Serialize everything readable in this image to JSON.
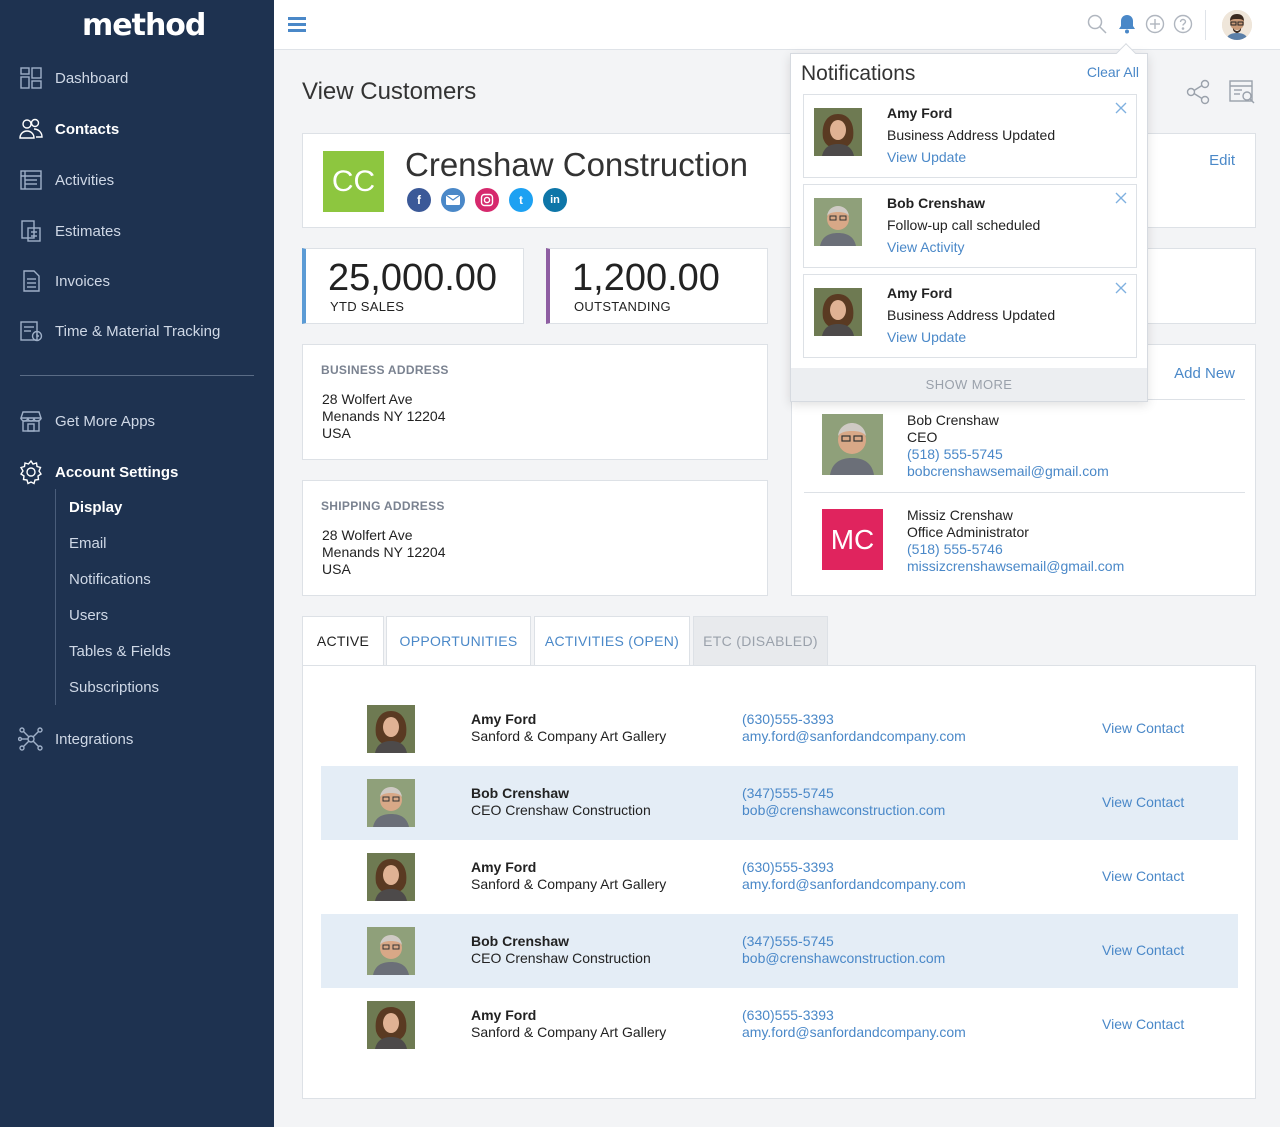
{
  "app": {
    "logo": "method"
  },
  "sidebar": {
    "items": [
      {
        "label": "Dashboard",
        "icon": "dashboard-icon"
      },
      {
        "label": "Contacts",
        "icon": "contacts-icon"
      },
      {
        "label": "Activities",
        "icon": "activities-icon"
      },
      {
        "label": "Estimates",
        "icon": "estimates-icon"
      },
      {
        "label": "Invoices",
        "icon": "invoices-icon"
      },
      {
        "label": "Time & Material Tracking",
        "icon": "time-material-icon"
      },
      {
        "label": "Get More Apps",
        "icon": "store-icon"
      },
      {
        "label": "Account Settings",
        "icon": "gear-icon"
      },
      {
        "label": "Integrations",
        "icon": "integrations-icon"
      }
    ],
    "sub_items": [
      "Display",
      "Email",
      "Notifications",
      "Users",
      "Tables & Fields",
      "Subscriptions"
    ]
  },
  "main": {
    "title": "View Customers",
    "customer": {
      "initials": "CC",
      "name": "Crenshaw Construction",
      "edit_label": "Edit"
    },
    "stats": [
      {
        "value": "25,000.00",
        "label": "YTD SALES",
        "color": "#5b9bd5"
      },
      {
        "value": "1,200.00",
        "label": "OUTSTANDING",
        "color": "#8e5ea2"
      }
    ],
    "business_address": {
      "heading": "BUSINESS ADDRESS",
      "line1": "28 Wolfert Ave",
      "line2": "Menands NY 12204",
      "line3": "USA"
    },
    "shipping_address": {
      "heading": "SHIPPING ADDRESS",
      "line1": "28 Wolfert Ave",
      "line2": "Menands NY 12204",
      "line3": "USA"
    },
    "contacts": {
      "add_new": "Add New",
      "items": [
        {
          "name": "Bob Crenshaw",
          "title": "CEO",
          "phone": "(518) 555-5745",
          "email": "bobcrenshawsemail@gmail.com"
        },
        {
          "name": "Missiz Crenshaw",
          "title": "Office Administrator",
          "phone": "(518) 555-5746",
          "email": "missizcrenshawsemail@gmail.com",
          "initials": "MC"
        }
      ]
    },
    "tabs": [
      "ACTIVE",
      "OPPORTUNITIES",
      "ACTIVITIES (OPEN)",
      "ETC (DISABLED)"
    ],
    "rows": [
      {
        "name": "Amy Ford",
        "company": "Sanford & Company Art Gallery",
        "phone": "(630)555-3393",
        "email": "amy.ford@sanfordandcompany.com",
        "action": "View Contact"
      },
      {
        "name": "Bob Crenshaw",
        "company": "CEO Crenshaw Construction",
        "phone": "(347)555-5745",
        "email": "bob@crenshawconstruction.com",
        "action": "View Contact"
      },
      {
        "name": "Amy Ford",
        "company": "Sanford & Company Art Gallery",
        "phone": "(630)555-3393",
        "email": "amy.ford@sanfordandcompany.com",
        "action": "View Contact"
      },
      {
        "name": "Bob Crenshaw",
        "company": "CEO Crenshaw Construction",
        "phone": "(347)555-5745",
        "email": "bob@crenshawconstruction.com",
        "action": "View Contact"
      },
      {
        "name": "Amy Ford",
        "company": "Sanford & Company Art Gallery",
        "phone": "(630)555-3393",
        "email": "amy.ford@sanfordandcompany.com",
        "action": "View Contact"
      }
    ]
  },
  "notifications": {
    "title": "Notifications",
    "clear_all": "Clear All",
    "items": [
      {
        "name": "Amy Ford",
        "message": "Business Address Updated",
        "link": "View Update"
      },
      {
        "name": "Bob Crenshaw",
        "message": "Follow-up call scheduled",
        "link": "View Activity"
      },
      {
        "name": "Amy Ford",
        "message": "Business Address Updated",
        "link": "View Update"
      }
    ],
    "show_more": "SHOW MORE"
  },
  "colors": {
    "sidebar": "#1e3250",
    "accent": "#4a88c8",
    "cc_badge": "#8dc63f",
    "mc_badge": "#e0245e",
    "row_shade": "#e4edf6"
  }
}
